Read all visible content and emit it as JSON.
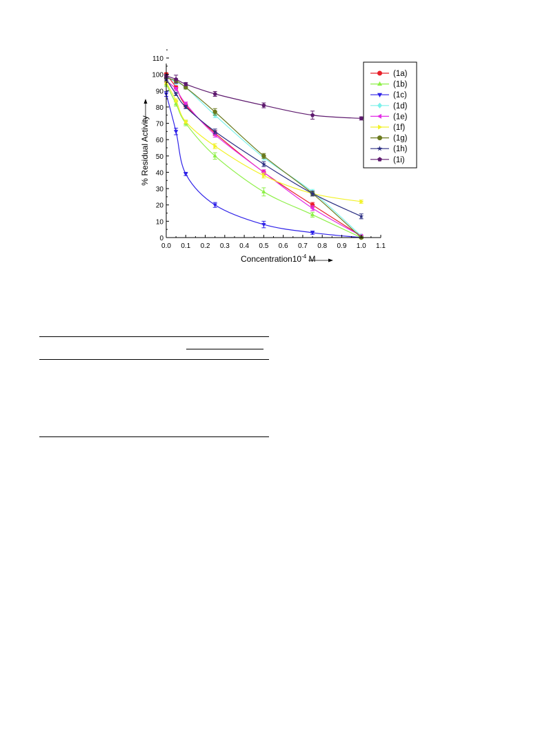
{
  "chart_data": {
    "type": "line",
    "xlabel": "Concentration10",
    "xlabel_sup": "-4",
    "xlabel_unit": " M",
    "ylabel": "% Residual Activity",
    "xlim": [
      0.0,
      1.1
    ],
    "ylim": [
      0,
      110
    ],
    "xticks": [
      "0.0",
      "0.1",
      "0.2",
      "0.3",
      "0.4",
      "0.5",
      "0.6",
      "0.7",
      "0.8",
      "0.9",
      "1.0",
      "1.1"
    ],
    "yticks": [
      "0",
      "10",
      "20",
      "30",
      "40",
      "50",
      "60",
      "70",
      "80",
      "90",
      "100",
      "110"
    ],
    "grid": false,
    "legend_position": "top-right",
    "x": [
      0.0,
      0.05,
      0.1,
      0.25,
      0.5,
      0.75,
      1.0
    ],
    "series": [
      {
        "name": "(1a)",
        "color": "#e8202a",
        "marker": "circle",
        "values": [
          100,
          92,
          81,
          64,
          40,
          20,
          1
        ],
        "err": [
          1,
          1,
          1,
          1.5,
          1.5,
          1.5,
          0.5
        ]
      },
      {
        "name": "(1b)",
        "color": "#8ef048",
        "marker": "triangle-up",
        "values": [
          94,
          82,
          70,
          50,
          28,
          14,
          0
        ],
        "err": [
          1.5,
          1.5,
          1.5,
          2,
          2.5,
          1.5,
          0.5
        ]
      },
      {
        "name": "(1c)",
        "color": "#2f22e8",
        "marker": "triangle-down",
        "values": [
          88,
          65,
          39,
          20,
          8,
          3,
          0
        ],
        "err": [
          1.5,
          2,
          1,
          1.5,
          2,
          1,
          0.5
        ]
      },
      {
        "name": "(1d)",
        "color": "#7cf1ea",
        "marker": "diamond",
        "values": [
          99,
          95,
          92,
          75,
          49,
          28,
          1
        ],
        "err": [
          1,
          1,
          1,
          1.5,
          1.5,
          1.5,
          0.5
        ]
      },
      {
        "name": "(1e)",
        "color": "#e22ae6",
        "marker": "triangle-left",
        "values": [
          96,
          91,
          82,
          63,
          40,
          18,
          1
        ],
        "err": [
          1,
          1,
          1,
          1.5,
          1.5,
          1.5,
          0.5
        ]
      },
      {
        "name": "(1f)",
        "color": "#f2f22a",
        "marker": "triangle-right",
        "values": [
          95,
          84,
          71,
          56,
          38,
          27,
          22
        ],
        "err": [
          1,
          1,
          1,
          1.5,
          1.5,
          1.5,
          1
        ]
      },
      {
        "name": "(1g)",
        "color": "#6b7a1e",
        "marker": "circle",
        "values": [
          98,
          96,
          92,
          77,
          50,
          27,
          0
        ],
        "err": [
          1,
          1,
          1,
          2,
          1.5,
          1.5,
          0.5
        ]
      },
      {
        "name": "(1h)",
        "color": "#2a2e82",
        "marker": "star",
        "values": [
          97,
          88,
          80,
          65,
          45,
          27,
          13
        ],
        "err": [
          1,
          1,
          1,
          1.5,
          1.5,
          1.5,
          1.5
        ]
      },
      {
        "name": "(1i)",
        "color": "#5e1a6e",
        "marker": "pentagon",
        "values": [
          99,
          97,
          94,
          88,
          81,
          75,
          73
        ],
        "err": [
          1,
          2.5,
          1,
          1.5,
          1.5,
          2.5,
          1
        ]
      }
    ]
  }
}
